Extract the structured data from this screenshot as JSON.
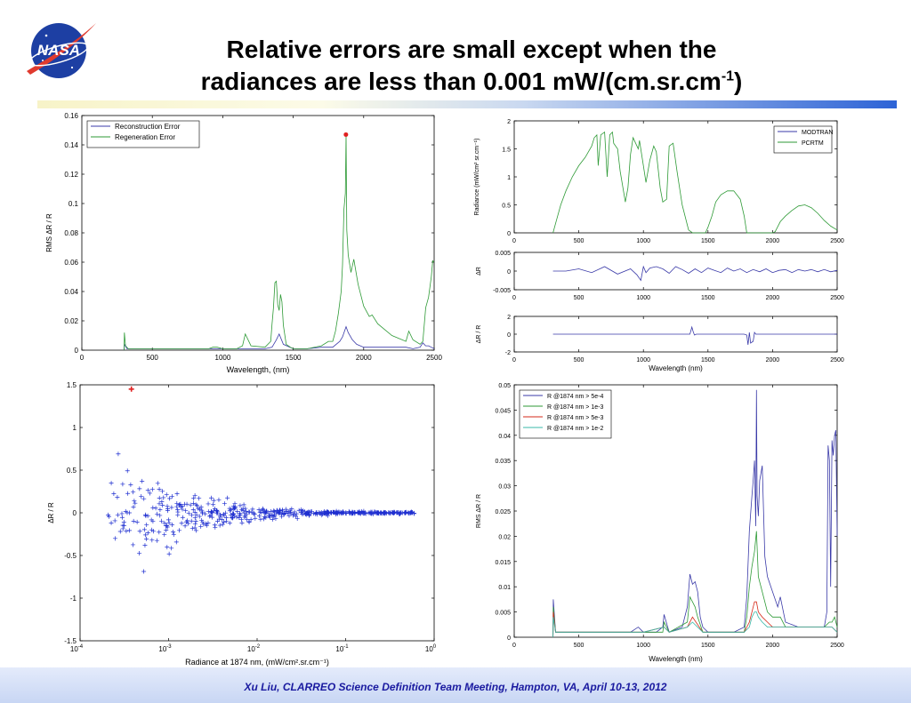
{
  "title": {
    "line1": "Relative errors are small except when the",
    "line2_main": "radiances are less than 0.001 mW/(cm.sr.cm",
    "line2_sup": "-1",
    "line2_end": ")"
  },
  "logo_text": "NASA",
  "footer": "Xu Liu, CLARREO Science Definition Team Meeting, Hampton, VA, April 10-13, 2012",
  "colors": {
    "blue": "#3a3aa8",
    "green": "#2e9a36",
    "red": "#d62a1a",
    "cyan": "#38b8a8",
    "marker": "#e02020",
    "scatter": "#1f2fd0"
  },
  "chart_data": [
    {
      "type": "line",
      "xlabel": "Wavelength, (nm)",
      "ylabel": "RMS ΔR / R",
      "xlim": [
        0,
        2500
      ],
      "ylim": [
        0,
        0.16
      ],
      "xticks": [
        0,
        500,
        1000,
        1500,
        2000,
        2500
      ],
      "yticks": [
        0,
        0.02,
        0.04,
        0.06,
        0.08,
        0.1,
        0.12,
        0.14,
        0.16
      ],
      "legend": {
        "position": "top-left"
      },
      "series": [
        {
          "name": "Reconstruction Error",
          "color": "#3a3aa8",
          "x": [
            300,
            302,
            320,
            600,
            900,
            960,
            1000,
            1100,
            1200,
            1300,
            1350,
            1380,
            1400,
            1430,
            1500,
            1600,
            1700,
            1780,
            1830,
            1850,
            1875,
            1890,
            1920,
            1950,
            2000,
            2100,
            2200,
            2300,
            2350,
            2400,
            2420,
            2440,
            2460,
            2480,
            2500
          ],
          "y": [
            0,
            0.004,
            0.001,
            0.001,
            0.001,
            0.001,
            0.001,
            0.001,
            0.001,
            0.001,
            0.002,
            0.007,
            0.011,
            0.004,
            0.001,
            0.001,
            0.002,
            0.002,
            0.006,
            0.009,
            0.016,
            0.012,
            0.007,
            0.004,
            0.002,
            0.002,
            0.002,
            0.002,
            0.001,
            0.002,
            0.005,
            0.003,
            0.003,
            0.002,
            0.001
          ]
        },
        {
          "name": "Regeneration Error",
          "color": "#2e9a36",
          "x": [
            300,
            302,
            310,
            330,
            600,
            900,
            930,
            960,
            1000,
            1050,
            1100,
            1140,
            1160,
            1200,
            1300,
            1340,
            1350,
            1360,
            1370,
            1380,
            1390,
            1400,
            1410,
            1420,
            1430,
            1450,
            1480,
            1500,
            1600,
            1700,
            1750,
            1780,
            1800,
            1820,
            1840,
            1850,
            1860,
            1870,
            1875,
            1880,
            1890,
            1910,
            1930,
            1960,
            2000,
            2040,
            2060,
            2100,
            2200,
            2300,
            2320,
            2350,
            2400,
            2420,
            2440,
            2460,
            2480,
            2490,
            2500
          ],
          "y": [
            0,
            0.012,
            0.003,
            0.001,
            0.001,
            0.001,
            0.002,
            0.002,
            0.001,
            0.001,
            0.001,
            0.003,
            0.011,
            0.003,
            0.002,
            0.006,
            0.018,
            0.029,
            0.046,
            0.047,
            0.031,
            0.027,
            0.038,
            0.033,
            0.017,
            0.004,
            0.002,
            0.001,
            0.001,
            0.003,
            0.006,
            0.006,
            0.013,
            0.025,
            0.04,
            0.058,
            0.096,
            0.107,
            0.147,
            0.082,
            0.065,
            0.053,
            0.062,
            0.045,
            0.03,
            0.023,
            0.024,
            0.018,
            0.01,
            0.006,
            0.013,
            0.007,
            0.004,
            0.006,
            0.029,
            0.036,
            0.05,
            0.061,
            0.06
          ]
        }
      ],
      "annotations": [
        {
          "x": 1874,
          "y": 0.147,
          "marker": "dot",
          "color": "#e02020"
        }
      ]
    },
    {
      "type": "line",
      "ylabel": "Radiance (mW/cm² sr.cm⁻¹)",
      "xlim": [
        0,
        2500
      ],
      "ylim": [
        0,
        2
      ],
      "xticks": [
        0,
        500,
        1000,
        1500,
        2000,
        2500
      ],
      "yticks": [
        0,
        0.5,
        1,
        1.5,
        2
      ],
      "legend": {
        "position": "top-right"
      },
      "series": [
        {
          "name": "MODTRAN",
          "color": "#3a3aa8"
        },
        {
          "name": "PCRTM",
          "color": "#2e9a36",
          "x": [
            300,
            330,
            360,
            400,
            450,
            500,
            550,
            600,
            620,
            640,
            650,
            670,
            700,
            720,
            740,
            760,
            770,
            800,
            820,
            860,
            880,
            900,
            920,
            940,
            960,
            970,
            1000,
            1020,
            1050,
            1080,
            1100,
            1130,
            1150,
            1180,
            1200,
            1230,
            1260,
            1300,
            1350,
            1380,
            1400,
            1450,
            1480,
            1500,
            1530,
            1560,
            1600,
            1650,
            1700,
            1750,
            1780,
            1800,
            1850,
            1950,
            2000,
            2020,
            2060,
            2100,
            2150,
            2200,
            2250,
            2300,
            2350,
            2400,
            2450,
            2500
          ],
          "y": [
            0,
            0.25,
            0.5,
            0.75,
            1.0,
            1.2,
            1.35,
            1.55,
            1.7,
            1.75,
            1.2,
            1.75,
            1.8,
            1.0,
            1.75,
            1.8,
            1.6,
            1.5,
            1.1,
            0.55,
            0.8,
            1.4,
            1.7,
            1.6,
            1.5,
            1.65,
            1.2,
            0.9,
            1.3,
            1.55,
            1.45,
            0.8,
            0.55,
            0.6,
            1.55,
            1.6,
            1.1,
            0.5,
            0.05,
            0,
            0,
            0,
            0,
            0.1,
            0.3,
            0.55,
            0.68,
            0.75,
            0.75,
            0.6,
            0.3,
            0,
            0,
            0,
            0,
            0.02,
            0.2,
            0.3,
            0.4,
            0.48,
            0.5,
            0.45,
            0.35,
            0.22,
            0.12,
            0.05
          ]
        }
      ]
    },
    {
      "type": "line",
      "ylabel": "ΔR",
      "xlim": [
        0,
        2500
      ],
      "ylim": [
        -0.005,
        0.005
      ],
      "xticks": [
        0,
        500,
        1000,
        1500,
        2000,
        2500
      ],
      "yticks": [
        -0.005,
        0,
        0.005
      ],
      "ytick_labels": [
        "-0.005",
        "0",
        "0.005"
      ],
      "series": [
        {
          "color": "#3a3aa8",
          "x": [
            300,
            400,
            500,
            600,
            700,
            800,
            900,
            950,
            980,
            1000,
            1020,
            1050,
            1100,
            1150,
            1200,
            1250,
            1300,
            1350,
            1400,
            1450,
            1500,
            1550,
            1600,
            1650,
            1700,
            1750,
            1800,
            1850,
            1900,
            1950,
            2000,
            2050,
            2100,
            2150,
            2200,
            2250,
            2300,
            2350,
            2400,
            2450,
            2500
          ],
          "y": [
            0,
            0,
            0.0006,
            -0.0004,
            0.0012,
            -0.0008,
            0.0006,
            -0.001,
            -0.0025,
            0.0012,
            -0.0004,
            0.0008,
            0.0012,
            0.0006,
            -0.0006,
            0.0012,
            0.0004,
            -0.0006,
            0.0006,
            -0.0004,
            0.0008,
            0.0002,
            -0.0004,
            0.0008,
            0,
            0.0006,
            -0.0004,
            0.0004,
            -0.0002,
            0.0006,
            -0.0004,
            0.0002,
            0.0004,
            -0.0004,
            0.0004,
            0,
            0.0004,
            -0.0002,
            0.0004,
            -0.0002,
            0.0002
          ]
        }
      ]
    },
    {
      "type": "line",
      "xlabel": "Wavelength (nm)",
      "ylabel": "ΔR / R",
      "xlim": [
        0,
        2500
      ],
      "ylim": [
        -2,
        2
      ],
      "xticks": [
        0,
        500,
        1000,
        1500,
        2000,
        2500
      ],
      "yticks": [
        -2,
        0,
        2
      ],
      "series": [
        {
          "color": "#3a3aa8",
          "x": [
            300,
            1360,
            1375,
            1385,
            1395,
            1410,
            1780,
            1800,
            1810,
            1820,
            1830,
            1850,
            1860,
            1870,
            2500
          ],
          "y": [
            0,
            0,
            0.8,
            0.3,
            -0.1,
            0,
            0,
            -0.1,
            -1.2,
            0.2,
            -1.0,
            -0.8,
            0.2,
            0,
            0
          ]
        }
      ]
    },
    {
      "type": "scatter",
      "xlabel": "Radiance at 1874 nm, (mW/cm².sr.cm⁻¹)",
      "ylabel": "ΔR / R",
      "xscale": "log",
      "xlim": [
        0.0001,
        1
      ],
      "ylim": [
        -1.5,
        1.5
      ],
      "xticks": [
        0.0001,
        0.001,
        0.01,
        0.1,
        1
      ],
      "xtick_labels": [
        [
          "10",
          "-4"
        ],
        [
          "10",
          "-3"
        ],
        [
          "10",
          "-2"
        ],
        [
          "10",
          "-1"
        ],
        [
          "10",
          "0"
        ]
      ],
      "yticks": [
        -1.5,
        -1,
        -0.5,
        0,
        0.5,
        1,
        1.5
      ],
      "ytick_labels": [
        "-1.5",
        "-1",
        "-0.5",
        "0",
        "0.5",
        "1",
        "1.5"
      ],
      "spread": {
        "x_from": 0.0002,
        "x_to": 0.6,
        "max_spread_at_low_x": 0.9
      },
      "annotations": [
        {
          "x": 0.00038,
          "y": 1.45,
          "marker": "plus",
          "color": "#e02020"
        }
      ]
    },
    {
      "type": "line",
      "xlabel": "Wavelength (nm)",
      "ylabel": "RMS ΔR / R",
      "xlim": [
        0,
        2500
      ],
      "ylim": [
        0,
        0.05
      ],
      "xticks": [
        0,
        500,
        1000,
        1500,
        2000,
        2500
      ],
      "yticks": [
        0,
        0.005,
        0.01,
        0.015,
        0.02,
        0.025,
        0.03,
        0.035,
        0.04,
        0.045,
        0.05
      ],
      "legend": {
        "position": "top-left"
      },
      "series": [
        {
          "name": "R @1874 nm > 5e-4",
          "color": "#3a3aa8",
          "x": [
            300,
            302,
            320,
            600,
            900,
            960,
            1000,
            1100,
            1150,
            1160,
            1200,
            1300,
            1340,
            1360,
            1380,
            1400,
            1420,
            1440,
            1460,
            1500,
            1600,
            1700,
            1780,
            1800,
            1820,
            1840,
            1850,
            1860,
            1870,
            1875,
            1880,
            1890,
            1900,
            1920,
            1940,
            1960,
            2000,
            2040,
            2060,
            2100,
            2200,
            2300,
            2400,
            2420,
            2430,
            2440,
            2450,
            2460,
            2470,
            2480,
            2490,
            2500
          ],
          "y": [
            0,
            0.0075,
            0.001,
            0.001,
            0.001,
            0.002,
            0.001,
            0.001,
            0.002,
            0.0045,
            0.001,
            0.002,
            0.006,
            0.0125,
            0.0105,
            0.011,
            0.009,
            0.004,
            0.002,
            0.001,
            0.001,
            0.001,
            0.002,
            0.008,
            0.021,
            0.028,
            0.031,
            0.035,
            0.022,
            0.049,
            0.028,
            0.024,
            0.031,
            0.034,
            0.016,
            0.012,
            0.009,
            0.006,
            0.008,
            0.003,
            0.002,
            0.002,
            0.002,
            0.005,
            0.038,
            0.035,
            0.01,
            0.039,
            0.036,
            0.04,
            0.041,
            0.02
          ]
        },
        {
          "name": "R @1874 nm > 1e-3",
          "color": "#2e9a36",
          "x": [
            300,
            302,
            320,
            600,
            1000,
            1150,
            1160,
            1200,
            1340,
            1360,
            1380,
            1400,
            1420,
            1460,
            1600,
            1780,
            1800,
            1820,
            1840,
            1860,
            1875,
            1890,
            1920,
            1960,
            2000,
            2060,
            2100,
            2200,
            2400,
            2440,
            2460,
            2480,
            2500
          ],
          "y": [
            0,
            0.006,
            0.001,
            0.001,
            0.001,
            0.001,
            0.003,
            0.001,
            0.003,
            0.008,
            0.007,
            0.006,
            0.004,
            0.001,
            0.001,
            0.001,
            0.004,
            0.01,
            0.014,
            0.017,
            0.021,
            0.012,
            0.009,
            0.005,
            0.004,
            0.004,
            0.002,
            0.002,
            0.002,
            0.003,
            0.003,
            0.004,
            0.002
          ]
        },
        {
          "name": "R @1874 nm > 5e-3",
          "color": "#d62a1a",
          "x": [
            300,
            302,
            320,
            600,
            1000,
            1160,
            1200,
            1340,
            1380,
            1460,
            1600,
            1780,
            1820,
            1840,
            1860,
            1875,
            1890,
            1920,
            1960,
            2000,
            2100,
            2200,
            2400,
            2460,
            2500
          ],
          "y": [
            0,
            0.005,
            0.001,
            0.001,
            0.001,
            0.002,
            0.001,
            0.002,
            0.004,
            0.001,
            0.001,
            0.001,
            0.003,
            0.005,
            0.007,
            0.007,
            0.005,
            0.004,
            0.003,
            0.002,
            0.002,
            0.002,
            0.002,
            0.002,
            0.001
          ]
        },
        {
          "name": "R @1874 nm > 1e-2",
          "color": "#38b8a8",
          "x": [
            300,
            302,
            320,
            600,
            1000,
            1160,
            1200,
            1340,
            1380,
            1460,
            1600,
            1780,
            1820,
            1840,
            1860,
            1875,
            1890,
            1920,
            1960,
            2000,
            2100,
            2200,
            2400,
            2460,
            2500
          ],
          "y": [
            0,
            0.004,
            0.001,
            0.001,
            0.001,
            0.002,
            0.001,
            0.002,
            0.003,
            0.001,
            0.001,
            0.001,
            0.002,
            0.004,
            0.005,
            0.005,
            0.004,
            0.003,
            0.002,
            0.002,
            0.002,
            0.002,
            0.002,
            0.002,
            0.001
          ]
        }
      ]
    }
  ]
}
